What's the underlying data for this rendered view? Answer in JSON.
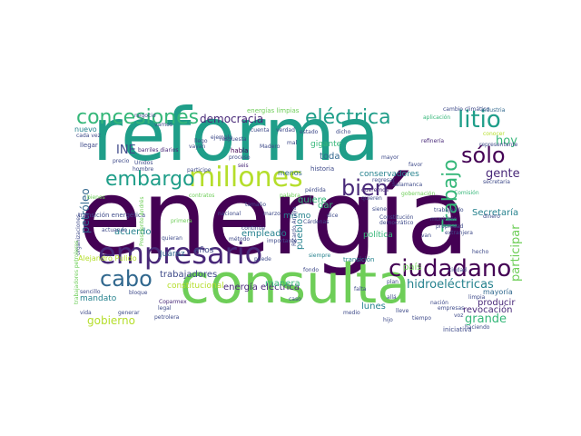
{
  "palette": {
    "dark_purple": "#440154",
    "purple": "#482878",
    "indigo": "#3e4a89",
    "blue": "#31688e",
    "teal_blue": "#26828e",
    "teal": "#1f9e89",
    "green_teal": "#35b779",
    "green": "#6ece58",
    "yellow_green": "#b5de2b",
    "yellow": "#fde725"
  },
  "words": [
    {
      "text": "energía"
    },
    {
      "text": "reforma"
    },
    {
      "text": "consulta"
    },
    {
      "text": "empresario"
    },
    {
      "text": "millones"
    },
    {
      "text": "ciudadano"
    },
    {
      "text": "concesiones"
    },
    {
      "text": "eléctrica"
    },
    {
      "text": "litio"
    },
    {
      "text": "embargo"
    },
    {
      "text": "bien"
    },
    {
      "text": "sólo"
    },
    {
      "text": "cabo"
    },
    {
      "text": "Trabajo"
    },
    {
      "text": "democracia"
    },
    {
      "text": "INE"
    },
    {
      "text": "hidroeléctricas"
    },
    {
      "text": "gobierno"
    },
    {
      "text": "gente"
    },
    {
      "text": "hoy"
    },
    {
      "text": "participar"
    },
    {
      "text": "petróleo"
    },
    {
      "text": "grande"
    },
    {
      "text": "revocación"
    },
    {
      "text": "producir"
    },
    {
      "text": "mayoría"
    },
    {
      "text": "Secretaría"
    },
    {
      "text": "energía eléctrica"
    },
    {
      "text": "trabajadores"
    },
    {
      "text": "acuerdo"
    },
    {
      "text": "empleado"
    },
    {
      "text": "mandato"
    },
    {
      "text": "constitucional"
    },
    {
      "text": "pueblo"
    },
    {
      "text": "lunes"
    },
    {
      "text": "conservadores"
    },
    {
      "text": "transición energética"
    },
    {
      "text": "Alejandro Pulido"
    },
    {
      "text": "país"
    },
    {
      "text": "política"
    },
    {
      "text": "quiere"
    },
    {
      "text": "toda"
    },
    {
      "text": "dar"
    },
    {
      "text": "mismo"
    },
    {
      "text": "manera"
    },
    {
      "text": "Juárez"
    },
    {
      "text": "años"
    },
    {
      "text": "energías limpias"
    },
    {
      "text": "cambio climático"
    },
    {
      "text": "industria"
    },
    {
      "text": "aplicación"
    },
    {
      "text": "refinería"
    },
    {
      "text": "nuevo"
    },
    {
      "text": "llegar"
    },
    {
      "text": "habla"
    },
    {
      "text": "gigante"
    },
    {
      "text": "barriles diarios"
    },
    {
      "text": "seis"
    },
    {
      "text": "menos"
    },
    {
      "text": "historia"
    },
    {
      "text": "queremos"
    },
    {
      "text": "siempre"
    },
    {
      "text": "transición"
    },
    {
      "text": "Constitución"
    },
    {
      "text": "propiedad"
    },
    {
      "text": "extranjera"
    },
    {
      "text": "trabajando"
    },
    {
      "text": "nación"
    },
    {
      "text": "empresas"
    },
    {
      "text": "iniciativa"
    },
    {
      "text": "haciendo"
    },
    {
      "text": "tiempo"
    },
    {
      "text": "hijo"
    },
    {
      "text": "medio"
    },
    {
      "text": "falta"
    },
    {
      "text": "plan"
    },
    {
      "text": "bloque"
    },
    {
      "text": "vida"
    },
    {
      "text": "generar"
    },
    {
      "text": "legal"
    },
    {
      "text": "petrolera"
    },
    {
      "text": "Coparmex"
    },
    {
      "text": "sencillo"
    },
    {
      "text": "organizaciones"
    },
    {
      "text": "trabajadores petroleros"
    },
    {
      "text": "Presidente Andrés"
    },
    {
      "text": "actuando"
    },
    {
      "text": "quieran"
    },
    {
      "text": "método"
    },
    {
      "text": "contratos"
    },
    {
      "text": "palabra"
    },
    {
      "text": "nacional"
    },
    {
      "text": "marzo"
    },
    {
      "text": "Cárdenas"
    },
    {
      "text": "Ricardo Anaya"
    },
    {
      "text": "siene"
    },
    {
      "text": "regresar"
    },
    {
      "text": "gobernación"
    },
    {
      "text": "Comisión"
    },
    {
      "text": "secretaria"
    },
    {
      "text": "municipio"
    },
    {
      "text": "ciudad"
    },
    {
      "text": "representante"
    },
    {
      "text": "conocer"
    },
    {
      "text": "respuesta"
    },
    {
      "text": "proceso"
    },
    {
      "text": "ejemplo"
    },
    {
      "text": "participe"
    },
    {
      "text": "continúe"
    },
    {
      "text": "precio"
    },
    {
      "text": "Unidos"
    },
    {
      "text": "hombre"
    },
    {
      "text": "bienes"
    },
    {
      "text": "cada vez"
    },
    {
      "text": "negocio"
    },
    {
      "text": "vamos"
    },
    {
      "text": "Madero"
    },
    {
      "text": "primera"
    },
    {
      "text": "hecho"
    },
    {
      "text": "limpia"
    },
    {
      "text": "voz"
    },
    {
      "text": "van"
    },
    {
      "text": "estado"
    },
    {
      "text": "dicho"
    },
    {
      "text": "lleve"
    },
    {
      "text": "allá"
    },
    {
      "text": "puede"
    },
    {
      "text": "caso"
    },
    {
      "text": "mal"
    },
    {
      "text": "llego"
    },
    {
      "text": "dinero"
    },
    {
      "text": "pérdida"
    },
    {
      "text": "vayan"
    },
    {
      "text": "cuenta"
    },
    {
      "text": "verdad"
    },
    {
      "text": "importante"
    },
    {
      "text": "fondo"
    },
    {
      "text": "quieren"
    },
    {
      "text": "favor"
    },
    {
      "text": "Salamanca"
    },
    {
      "text": "democrático"
    },
    {
      "text": "dice"
    },
    {
      "text": "mayor"
    },
    {
      "text": "tamaño"
    }
  ]
}
